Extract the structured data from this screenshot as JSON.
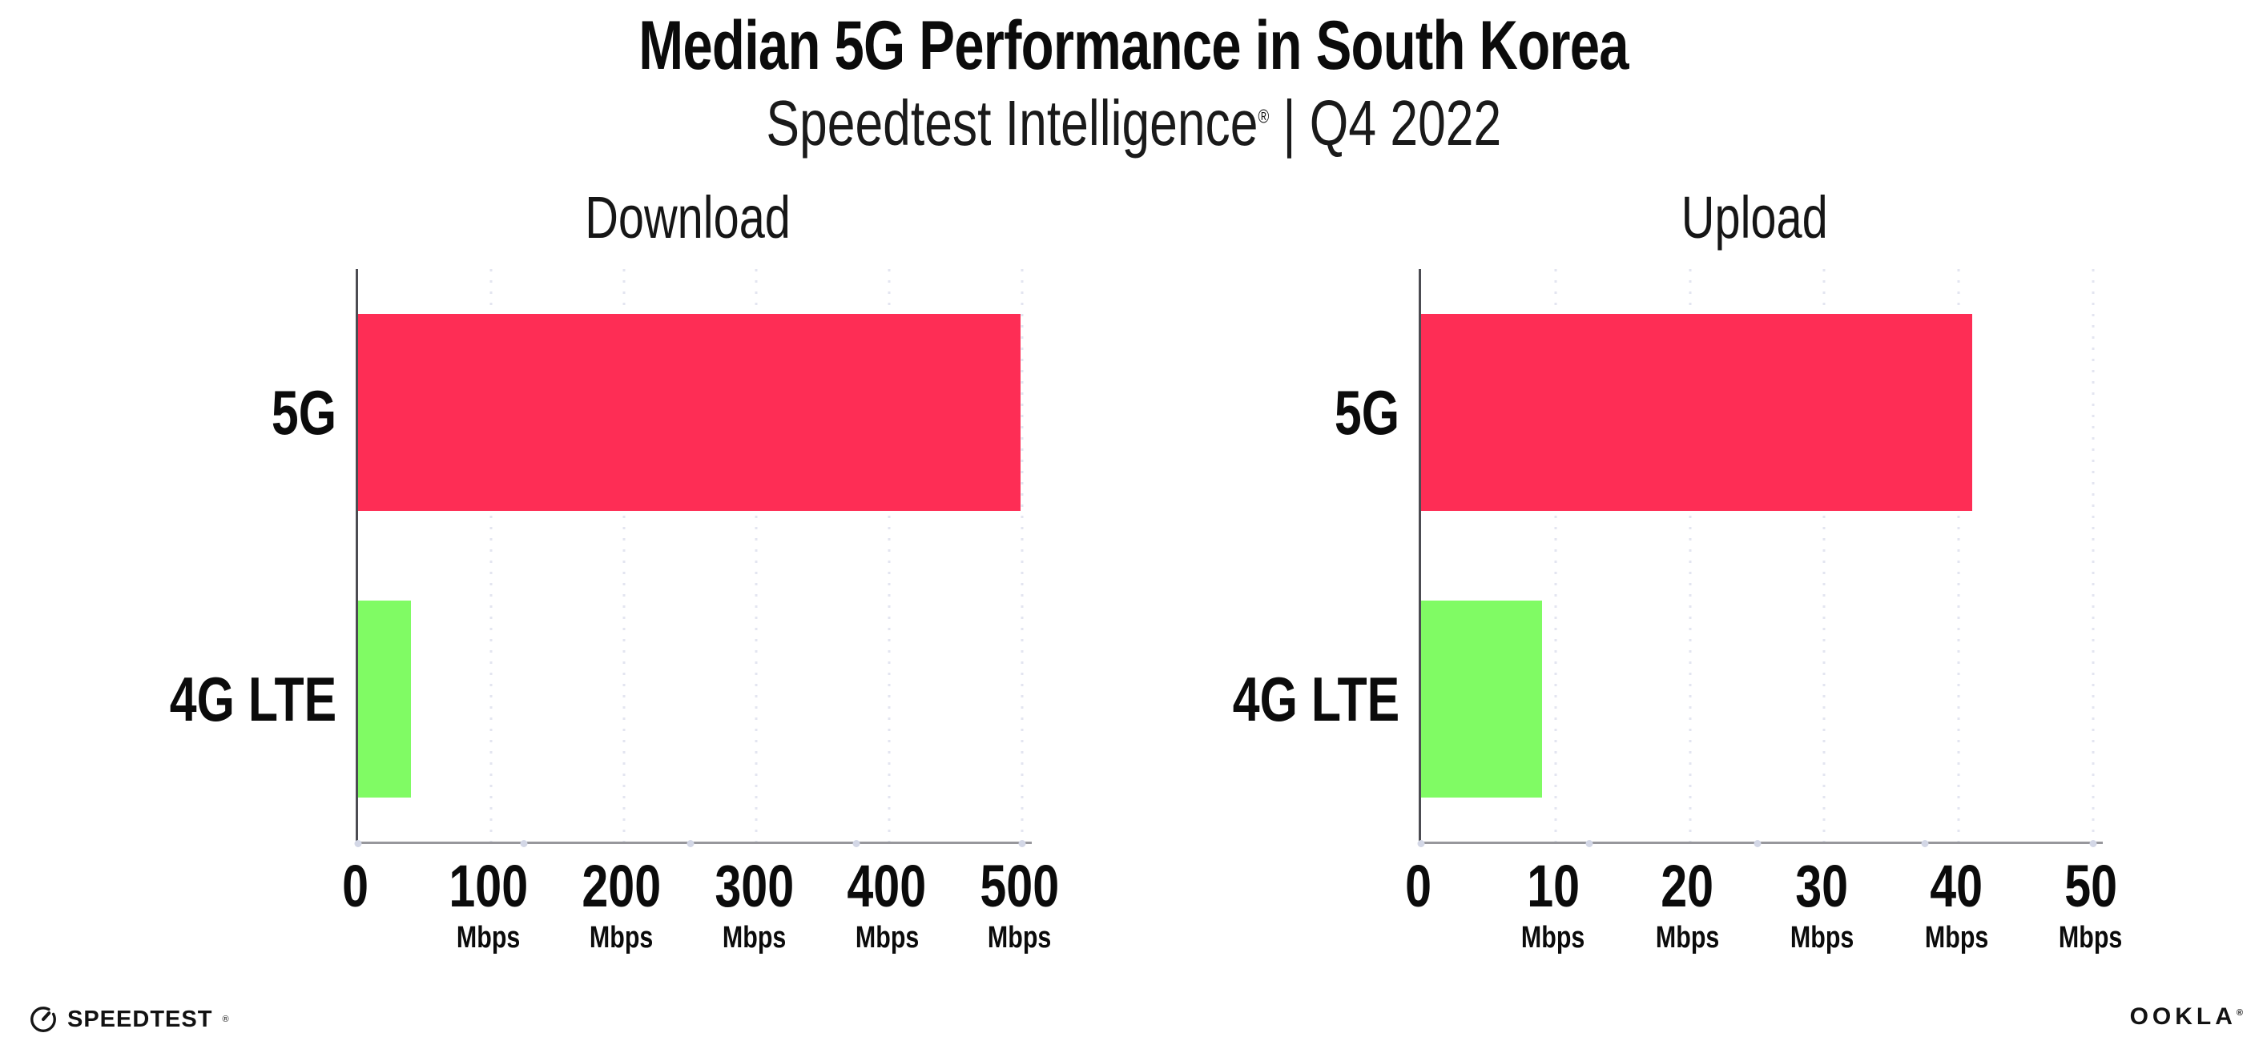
{
  "header": {
    "title": "Median 5G Performance in South Korea",
    "subtitle_brand": "Speedtest Intelligence",
    "subtitle_mark": "®",
    "subtitle_separator": "|",
    "subtitle_period": "Q4 2022"
  },
  "chart_data": [
    {
      "type": "bar",
      "orientation": "horizontal",
      "title": "Download",
      "categories": [
        "5G",
        "4G LTE"
      ],
      "values": [
        499,
        40
      ],
      "unit": "Mbps",
      "xlim": [
        0,
        500
      ],
      "xticks": [
        0,
        100,
        200,
        300,
        400,
        500
      ],
      "grid": "vertical-dotted",
      "legend": "none",
      "bar_colors": [
        "#FE2D55",
        "#80FB64"
      ]
    },
    {
      "type": "bar",
      "orientation": "horizontal",
      "title": "Upload",
      "categories": [
        "5G",
        "4G LTE"
      ],
      "values": [
        41,
        9
      ],
      "unit": "Mbps",
      "xlim": [
        0,
        50
      ],
      "xticks": [
        0,
        10,
        20,
        30,
        40,
        50
      ],
      "grid": "vertical-dotted",
      "legend": "none",
      "bar_colors": [
        "#FE2D55",
        "#80FB64"
      ]
    }
  ],
  "colors": {
    "bar_5g": "#FE2D55",
    "bar_4g_lte": "#80FB64",
    "gridline": "#E3E5F0",
    "axis_vertical": "#4C4C52",
    "axis_baseline": "#97979C",
    "tick_dot": "#D3D7E6",
    "text": "#0B0B0B"
  },
  "footer": {
    "speedtest_label": "SPEEDTEST",
    "speedtest_mark": "®",
    "ookla_label": "OOKLA",
    "ookla_mark": "®"
  }
}
